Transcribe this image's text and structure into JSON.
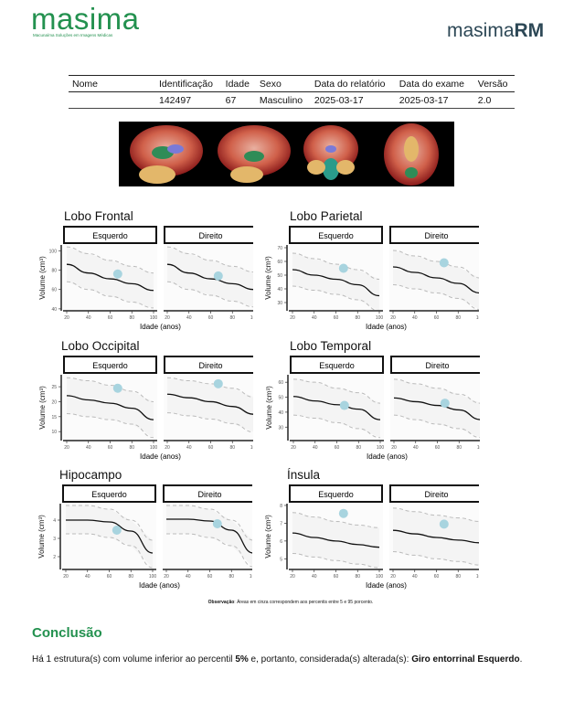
{
  "header": {
    "logo": "masima",
    "logo_subtitle": "Macunaíma Soluções em Imagens Médicas",
    "brand_light": "masima",
    "brand_bold": "RM"
  },
  "patient_table": {
    "headers": [
      "Nome",
      "Identificação",
      "Idade",
      "Sexo",
      "Data do relatório",
      "Data do exame",
      "Versão"
    ],
    "row": [
      "",
      "142497",
      "67",
      "Masculino",
      "2025-03-17",
      "2025-03-17",
      "2.0"
    ]
  },
  "colors": {
    "green": "#23914f",
    "point": "#a8d4df",
    "band": "#f4f4f4",
    "median": "#111111",
    "dashed": "#bbbbbb"
  },
  "common": {
    "x_label": "Idade (anos)",
    "y_label": "Volume (cm³)",
    "left": "Esquerdo",
    "right": "Direito"
  },
  "chart_data": [
    {
      "title": "Lobo Frontal",
      "type": "line",
      "x_ticks": [
        20,
        40,
        60,
        80,
        100
      ],
      "ylim": [
        38,
        106
      ],
      "y_ticks": [
        40,
        60,
        80,
        100
      ],
      "panels": [
        {
          "name": "Esquerdo",
          "median": [
            86,
            77,
            71,
            66,
            59
          ],
          "upper": [
            104,
            97,
            90,
            84,
            77
          ],
          "lower": [
            68,
            60,
            53,
            47,
            41
          ],
          "patient": [
            67,
            76
          ]
        },
        {
          "name": "Direito",
          "median": [
            86,
            77,
            71,
            66,
            60
          ],
          "upper": [
            104,
            97,
            90,
            84,
            78
          ],
          "lower": [
            68,
            60,
            54,
            48,
            42
          ],
          "patient": [
            67,
            74
          ]
        }
      ]
    },
    {
      "title": "Lobo Parietal",
      "type": "line",
      "x_ticks": [
        20,
        40,
        60,
        80,
        100
      ],
      "ylim": [
        24,
        72
      ],
      "y_ticks": [
        30,
        40,
        50,
        60,
        70
      ],
      "panels": [
        {
          "name": "Esquerdo",
          "median": [
            54,
            50,
            47,
            43,
            35
          ],
          "upper": [
            66,
            62,
            58,
            54,
            47
          ],
          "lower": [
            42,
            39,
            36,
            32,
            24
          ],
          "patient": [
            67,
            55
          ]
        },
        {
          "name": "Direito",
          "median": [
            56,
            52,
            48,
            44,
            37
          ],
          "upper": [
            68,
            64,
            60,
            56,
            48
          ],
          "lower": [
            43,
            40,
            37,
            33,
            25
          ],
          "patient": [
            67,
            59
          ]
        }
      ]
    },
    {
      "title": "Lobo Occipital",
      "type": "line",
      "x_ticks": [
        20,
        40,
        60,
        80,
        100
      ],
      "ylim": [
        7,
        29
      ],
      "y_ticks": [
        10,
        15,
        20,
        25
      ],
      "panels": [
        {
          "name": "Esquerdo",
          "median": [
            22,
            20.6,
            19.5,
            17.8,
            14
          ],
          "upper": [
            28,
            27,
            25.5,
            23.5,
            20
          ],
          "lower": [
            16,
            15,
            14,
            12.5,
            8
          ],
          "patient": [
            67,
            24.5
          ]
        },
        {
          "name": "Direito",
          "median": [
            22.5,
            21.3,
            20,
            18.4,
            15.8
          ],
          "upper": [
            28,
            27,
            26,
            24.5,
            21.5
          ],
          "lower": [
            16.3,
            15.3,
            14.2,
            12.7,
            9.8
          ],
          "patient": [
            67,
            26
          ]
        }
      ]
    },
    {
      "title": "Lobo Temporal",
      "type": "line",
      "x_ticks": [
        20,
        40,
        60,
        80,
        100
      ],
      "ylim": [
        21,
        65
      ],
      "y_ticks": [
        30,
        40,
        50,
        60
      ],
      "panels": [
        {
          "name": "Esquerdo",
          "median": [
            50.5,
            47.5,
            45,
            42,
            35
          ],
          "upper": [
            62,
            60,
            56,
            53,
            46
          ],
          "lower": [
            38,
            36,
            33,
            29,
            23
          ],
          "patient": [
            67,
            44.5
          ]
        },
        {
          "name": "Direito",
          "median": [
            49.5,
            47,
            44.5,
            41.5,
            35
          ],
          "upper": [
            62,
            59,
            56,
            52,
            46
          ],
          "lower": [
            38,
            35,
            32,
            29,
            23
          ],
          "patient": [
            67,
            46
          ]
        }
      ]
    },
    {
      "title": "Hipocampo",
      "type": "line",
      "x_ticks": [
        20,
        40,
        60,
        80,
        100
      ],
      "ylim": [
        1.3,
        4.9
      ],
      "y_ticks": [
        2,
        3,
        4
      ],
      "panels": [
        {
          "name": "Esquerdo",
          "median": [
            4.0,
            4.0,
            3.9,
            3.4,
            2.2
          ],
          "upper": [
            4.8,
            4.8,
            4.6,
            4.0,
            2.9
          ],
          "lower": [
            3.25,
            3.25,
            3.05,
            2.6,
            1.4
          ],
          "patient": [
            67,
            3.45
          ]
        },
        {
          "name": "Direito",
          "median": [
            4.05,
            4.05,
            3.95,
            3.45,
            2.2
          ],
          "upper": [
            4.8,
            4.8,
            4.6,
            4.0,
            2.9
          ],
          "lower": [
            3.25,
            3.25,
            3.05,
            2.6,
            1.45
          ],
          "patient": [
            67,
            3.8
          ]
        }
      ]
    },
    {
      "title": "Ínsula",
      "type": "line",
      "x_ticks": [
        20,
        40,
        60,
        80,
        100
      ],
      "ylim": [
        4.4,
        8.1
      ],
      "y_ticks": [
        5,
        6,
        7,
        8
      ],
      "panels": [
        {
          "name": "Esquerdo",
          "median": [
            6.45,
            6.2,
            6.0,
            5.8,
            5.65
          ],
          "upper": [
            7.6,
            7.35,
            7.1,
            6.9,
            6.75
          ],
          "lower": [
            5.3,
            5.1,
            4.9,
            4.7,
            4.5
          ],
          "patient": [
            67,
            7.55
          ]
        },
        {
          "name": "Direito",
          "median": [
            6.6,
            6.4,
            6.2,
            6.05,
            5.9
          ],
          "upper": [
            7.85,
            7.65,
            7.45,
            7.3,
            7.1
          ],
          "lower": [
            5.4,
            5.2,
            5.0,
            4.85,
            4.65
          ],
          "patient": [
            67,
            6.95
          ]
        }
      ]
    }
  ],
  "observation": {
    "label": "Observação",
    "text": ": Áreas em cinza correspondem aos percentis entre 5 e 95 porcento."
  },
  "conclusion": {
    "title": "Conclusão",
    "text_1": "Há 1 estrutura(s) com volume inferior ao percentil ",
    "bold_1": "5%",
    "text_2": " e, portanto, considerada(s) alterada(s): ",
    "bold_2": "Giro entorrinal Esquerdo",
    "text_3": "."
  }
}
